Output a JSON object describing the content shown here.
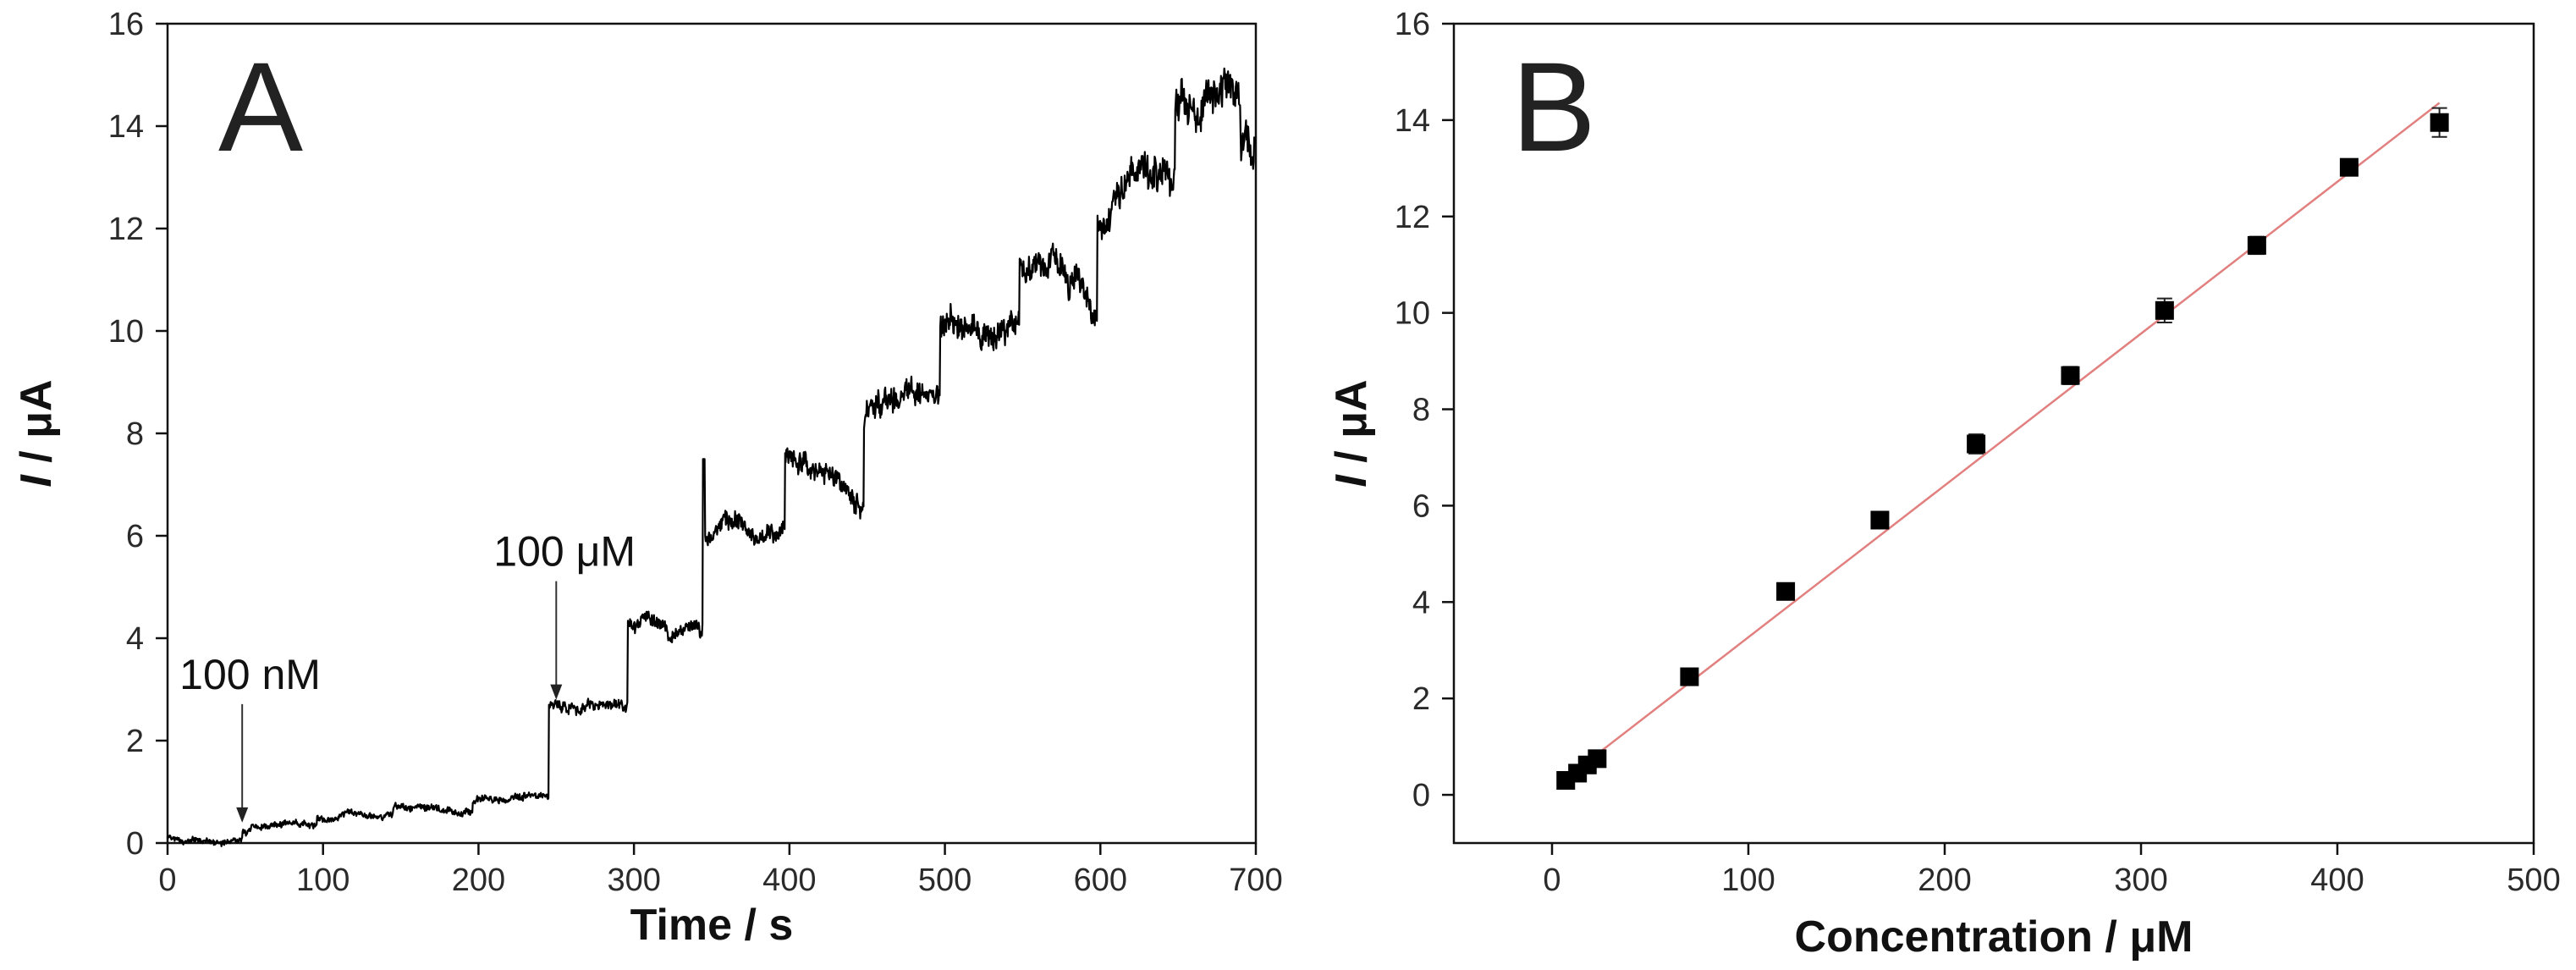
{
  "chart_data": [
    {
      "type": "line",
      "panel_label": "A",
      "xlabel": "Time / s",
      "ylabel_italic": "I",
      "ylabel_rest": " / μA",
      "xlim": [
        0,
        700
      ],
      "ylim": [
        0,
        16
      ],
      "x_ticks": [
        0,
        100,
        200,
        300,
        400,
        500,
        600,
        700
      ],
      "y_ticks": [
        0,
        2,
        4,
        6,
        8,
        10,
        12,
        14,
        16
      ],
      "grid": false,
      "line_color": "#000000",
      "annotations": [
        {
          "text": "100 nM",
          "x": 48,
          "y": 0.3
        },
        {
          "text": "100 μM",
          "x": 250,
          "y": 2.7
        }
      ],
      "steps": [
        {
          "t": 0,
          "i": 0.12
        },
        {
          "t": 48,
          "i": 0.3
        },
        {
          "t": 96,
          "i": 0.47
        },
        {
          "t": 145,
          "i": 0.62
        },
        {
          "t": 196,
          "i": 0.8
        },
        {
          "t": 245,
          "i": 2.5
        },
        {
          "t": 296,
          "i": 4.1
        },
        {
          "t": 345,
          "i": 5.8
        },
        {
          "t": 397,
          "i": 7.15
        },
        {
          "t": 448,
          "i": 8.75
        },
        {
          "t": 497,
          "i": 10.0
        },
        {
          "t": 548,
          "i": 11.2
        },
        {
          "t": 598,
          "i": 12.9
        },
        {
          "t": 648,
          "i": 14.4
        },
        {
          "t": 690,
          "i": 13.7
        }
      ],
      "spike": {
        "t": 345,
        "i": 7.5
      }
    },
    {
      "type": "scatter",
      "panel_label": "B",
      "xlabel": "Concentration / μM",
      "ylabel_italic": "I",
      "ylabel_rest": " / μA",
      "xlim": [
        -50,
        500
      ],
      "ylim": [
        -1,
        16
      ],
      "x_ticks": [
        0,
        100,
        200,
        300,
        400,
        500
      ],
      "y_ticks": [
        0,
        2,
        4,
        6,
        8,
        10,
        12,
        14,
        16
      ],
      "grid": false,
      "marker_color": "#000000",
      "fit_line_color": "#e28080",
      "fit": {
        "slope": 0.0315,
        "intercept": 0.12,
        "x_range": [
          7,
          452
        ]
      },
      "points": [
        {
          "x": 7,
          "y": 0.3,
          "err": 0.05
        },
        {
          "x": 13,
          "y": 0.45,
          "err": 0.05
        },
        {
          "x": 18,
          "y": 0.62,
          "err": 0.05
        },
        {
          "x": 23,
          "y": 0.75,
          "err": 0.05
        },
        {
          "x": 70,
          "y": 2.45,
          "err": 0.1
        },
        {
          "x": 119,
          "y": 4.22,
          "err": 0.12
        },
        {
          "x": 167,
          "y": 5.7,
          "err": 0.15
        },
        {
          "x": 216,
          "y": 7.28,
          "err": 0.2
        },
        {
          "x": 264,
          "y": 8.7,
          "err": 0.18
        },
        {
          "x": 312,
          "y": 10.05,
          "err": 0.25
        },
        {
          "x": 359,
          "y": 11.4,
          "err": 0.18
        },
        {
          "x": 406,
          "y": 13.02,
          "err": 0.12
        },
        {
          "x": 452,
          "y": 13.95,
          "err": 0.3
        }
      ]
    }
  ]
}
